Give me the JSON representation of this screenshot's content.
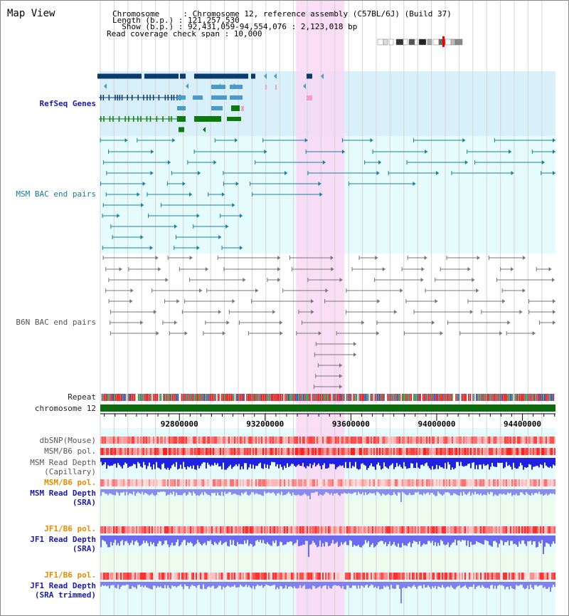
{
  "window": {
    "title": "Map View"
  },
  "info": {
    "chromosome_line": "Chromosome     : Chromosome 12, reference assembly (C57BL/6J) (Build 37)",
    "length_line": "Length (b.p.) : 121,257,530",
    "show_line": "  Show (b.p.) : 92,431,059-94,554,076 : 2,123,018 bp",
    "coverage_line": "Read coverage check span : 10,000"
  },
  "view": {
    "start": 92431059,
    "end": 94554076
  },
  "colors": {
    "grid": "#d4d4d4",
    "highlight": "#f9d8f5",
    "refseq_bg": "#d9f0fb",
    "bac_bg": "#e6fbfb",
    "lower_bg": "#e6fbfb",
    "sra_bg": "#eefcee",
    "refseq_dark": "#0b3a6e",
    "refseq_mid": "#4a9bc9",
    "refseq_green": "#0c7a0c",
    "msm_bac": "#1a7fa0",
    "b6n_bac": "#777777",
    "chromosome": "#0c6b0c",
    "label_black": "#222222",
    "label_navy": "#1a1aa6",
    "label_teal": "#1a7a9a",
    "label_gray": "#555555",
    "label_orange": "#e88a00"
  },
  "tracks": {
    "refseq": "RefSeq Genes",
    "msm_bac": "MSM BAC end pairs",
    "b6n_bac": "B6N BAC end pairs",
    "repeat": "Repeat",
    "chromosome": "chromosome 12",
    "dbsnp": "dbSNP(Mouse)",
    "msm_b6_pol_1": "MSM/B6 pol.",
    "msm_depth_cap_1": "MSM Read Depth",
    "msm_depth_cap_2": "(Capillary)",
    "msm_b6_pol_2": "MSM/B6 pol.",
    "msm_depth_sra_1": "MSM Read Depth",
    "msm_depth_sra_2": "(SRA)",
    "jf1_b6_pol_1": "JF1/B6 pol.",
    "jf1_depth_sra_1": "JF1 Read Depth",
    "jf1_depth_sra_2": "(SRA)",
    "jf1_b6_pol_2": "JF1/B6 pol.",
    "jf1_depth_trim_1": "JF1 Read Depth",
    "jf1_depth_trim_2": "(SRA trimmed)"
  },
  "axis": {
    "ticks": [
      {
        "value": 92800000,
        "label": "92800000"
      },
      {
        "value": 93200000,
        "label": "93200000"
      },
      {
        "value": 93600000,
        "label": "93600000"
      },
      {
        "value": 94000000,
        "label": "94000000"
      },
      {
        "value": 94400000,
        "label": "94400000"
      }
    ]
  },
  "highlight_region": {
    "start": 93344000,
    "end": 93570000
  }
}
